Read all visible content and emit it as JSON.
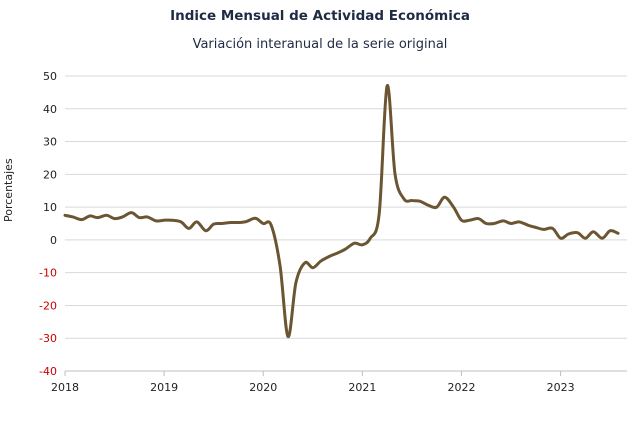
{
  "chart_data": {
    "type": "line",
    "title": "Indice Mensual de  Actividad Económica",
    "subtitle": "Variación interanual de la serie original",
    "xlabel": "",
    "ylabel": "Porcentajes",
    "ylim": [
      -40,
      50
    ],
    "yticks": [
      50,
      40,
      30,
      20,
      10,
      0,
      -10,
      -20,
      -30,
      -40
    ],
    "xlim": [
      2018,
      2023.67
    ],
    "xticks": [
      "2018",
      "2019",
      "2020",
      "2021",
      "2022",
      "2023"
    ],
    "grid": "horizontal",
    "line_color": "#6b5533",
    "negative_tick_color": "#cc0000",
    "series": [
      {
        "x": [
          2018.0,
          2018.08,
          2018.17,
          2018.25,
          2018.33,
          2018.42,
          2018.5,
          2018.58,
          2018.67,
          2018.75,
          2018.83,
          2018.92,
          2019.0,
          2019.08,
          2019.17,
          2019.25,
          2019.33,
          2019.42,
          2019.5,
          2019.58,
          2019.67,
          2019.75,
          2019.83,
          2019.92,
          2020.0,
          2020.08,
          2020.17,
          2020.25,
          2020.33,
          2020.42,
          2020.5,
          2020.58,
          2020.67,
          2020.75,
          2020.83,
          2020.92,
          2021.0,
          2021.08,
          2021.17,
          2021.25,
          2021.33,
          2021.42,
          2021.5,
          2021.58,
          2021.67,
          2021.75,
          2021.83,
          2021.92,
          2022.0,
          2022.08,
          2022.17,
          2022.25,
          2022.33,
          2022.42,
          2022.5,
          2022.58,
          2022.67,
          2022.75,
          2022.83,
          2022.92,
          2023.0,
          2023.08,
          2023.17,
          2023.25,
          2023.33,
          2023.42,
          2023.5,
          2023.58
        ],
        "values": [
          7.5,
          7.0,
          6.2,
          7.3,
          6.8,
          7.5,
          6.5,
          7.0,
          8.3,
          6.8,
          7.0,
          5.8,
          6.0,
          6.0,
          5.5,
          3.5,
          5.5,
          2.8,
          4.8,
          5.0,
          5.3,
          5.3,
          5.6,
          6.6,
          5.0,
          4.5,
          -8.0,
          -29.5,
          -13.0,
          -7.0,
          -8.5,
          -6.5,
          -5.0,
          -4.0,
          -2.8,
          -1.0,
          -1.5,
          0.5,
          8.0,
          47.0,
          20.0,
          12.5,
          12.0,
          11.8,
          10.5,
          10.0,
          13.0,
          10.0,
          6.0,
          6.0,
          6.5,
          5.0,
          5.0,
          5.8,
          5.0,
          5.5,
          4.5,
          3.8,
          3.2,
          3.5,
          0.5,
          1.8,
          2.2,
          0.5,
          2.5,
          0.5,
          2.8,
          2.0
        ]
      }
    ]
  }
}
